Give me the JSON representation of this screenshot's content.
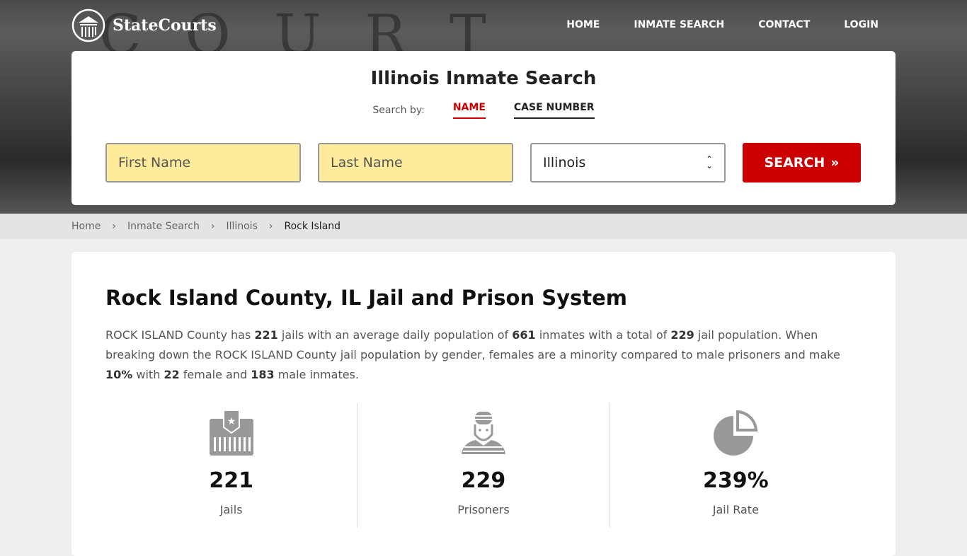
{
  "hero": {
    "bg_text": "COURT HOUSE"
  },
  "logo": {
    "name": "StateCourts"
  },
  "nav": [
    "HOME",
    "INMATE SEARCH",
    "CONTACT",
    "LOGIN"
  ],
  "search": {
    "title": "Illinois Inmate Search",
    "search_by": "Search by:",
    "tabs": [
      "NAME",
      "CASE NUMBER"
    ],
    "first_placeholder": "First Name",
    "last_placeholder": "Last Name",
    "state": "Illinois",
    "button": "SEARCH"
  },
  "breadcrumb": [
    "Home",
    "Inmate Search",
    "Illinois",
    "Rock Island"
  ],
  "main": {
    "title": "Rock Island County, IL Jail and Prison System",
    "p": [
      "ROCK ISLAND County has ",
      "221",
      " jails with an average daily population of ",
      "661",
      " inmates with a total of ",
      "229",
      " jail population. When breaking down the ROCK ISLAND County jail population by gender, females are a minority compared to male prisoners and make ",
      "10%",
      " with ",
      "22",
      " female and ",
      "183",
      " male inmates."
    ],
    "stats": [
      {
        "value": "221",
        "label": "Jails",
        "icon": "jail-icon"
      },
      {
        "value": "229",
        "label": "Prisoners",
        "icon": "prisoner-icon"
      },
      {
        "value": "239%",
        "label": "Jail Rate",
        "icon": "pie-chart-icon"
      }
    ]
  },
  "colors": {
    "accent": "#cc0000",
    "input_bg": "#feeb9c"
  }
}
